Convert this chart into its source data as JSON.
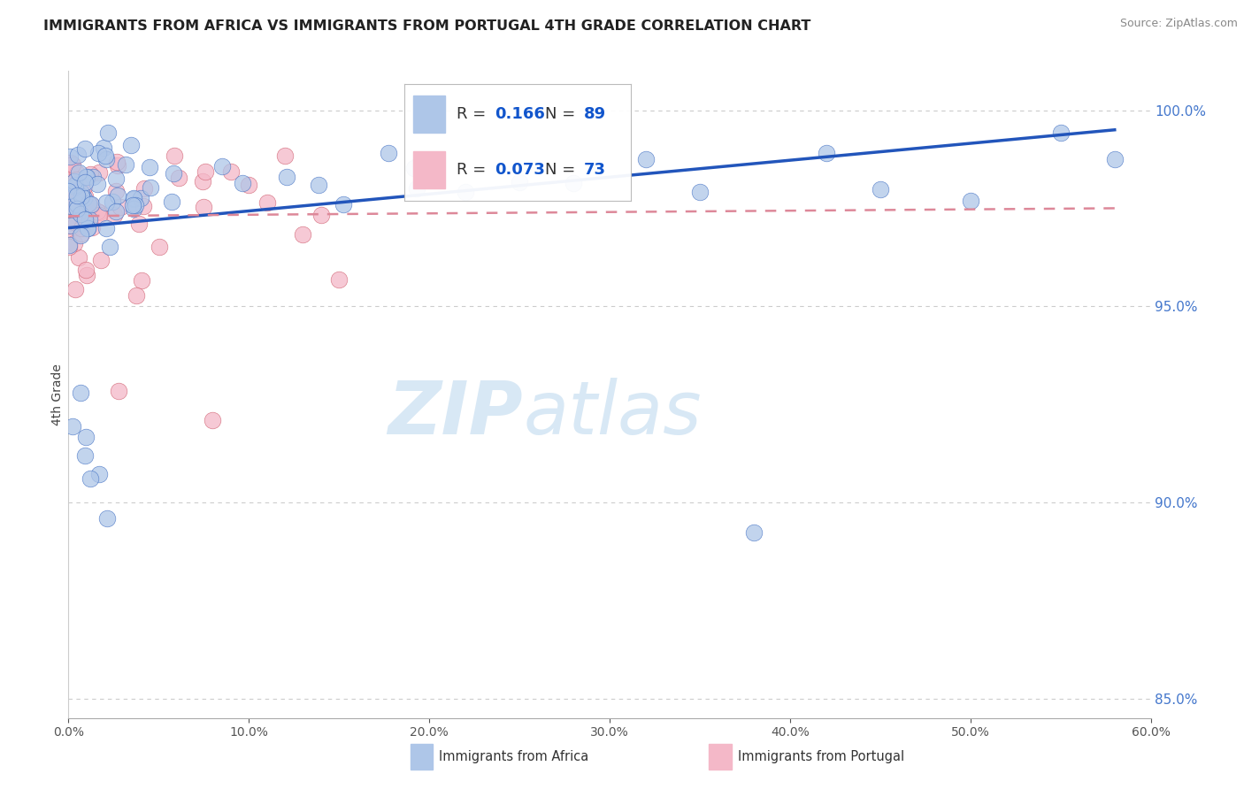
{
  "title": "IMMIGRANTS FROM AFRICA VS IMMIGRANTS FROM PORTUGAL 4TH GRADE CORRELATION CHART",
  "source_text": "Source: ZipAtlas.com",
  "ylabel": "4th Grade",
  "x_label_africa": "Immigrants from Africa",
  "x_label_portugal": "Immigrants from Portugal",
  "xlim": [
    0.0,
    60.0
  ],
  "ylim": [
    84.5,
    101.0
  ],
  "yticks": [
    85.0,
    90.0,
    95.0,
    100.0
  ],
  "xticks": [
    0.0,
    10.0,
    20.0,
    30.0,
    40.0,
    50.0,
    60.0
  ],
  "R_africa": 0.166,
  "N_africa": 89,
  "R_portugal": 0.073,
  "N_portugal": 73,
  "color_africa": "#aec6e8",
  "color_africa_edge": "#4472c4",
  "color_portugal": "#f4b8c8",
  "color_portugal_edge": "#d06070",
  "trendline_africa_color": "#2255bb",
  "trendline_portugal_color": "#dd8899",
  "watermark_text": "ZIPatlas",
  "watermark_color": "#d8e8f5",
  "legend_R_color": "#1155cc",
  "legend_N_color": "#1155cc"
}
